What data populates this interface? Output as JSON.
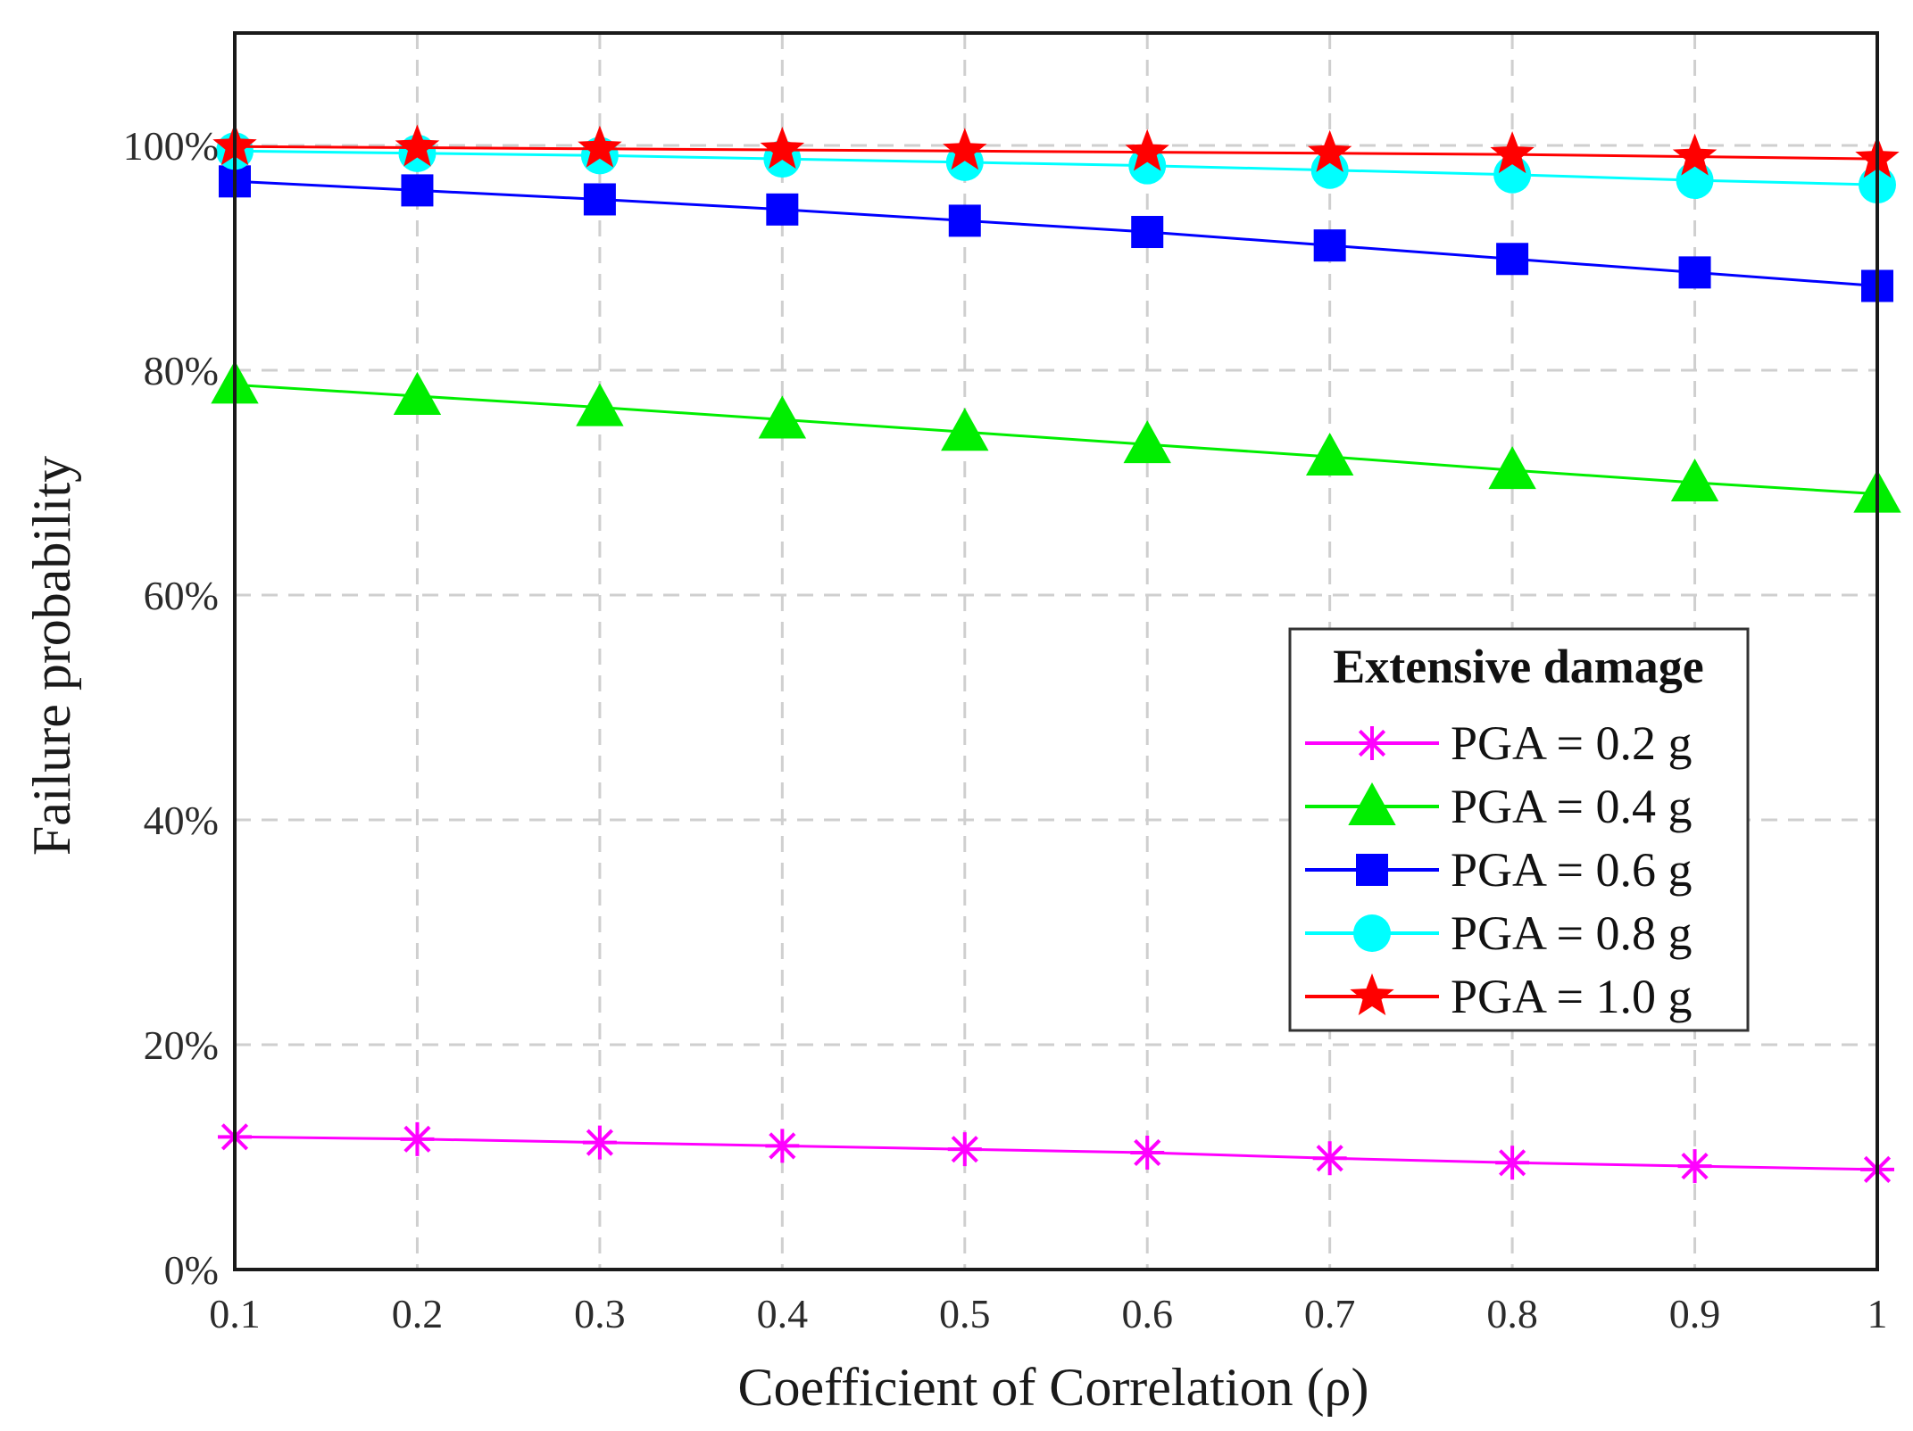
{
  "chart_data": {
    "type": "line",
    "title": "",
    "xlabel": "Coefficient of Correlation (ρ)",
    "ylabel": "Failure probability",
    "x": [
      0.1,
      0.2,
      0.3,
      0.4,
      0.5,
      0.6,
      0.7,
      0.8,
      0.9,
      1.0
    ],
    "xlim": [
      0.1,
      1.0
    ],
    "ylim": [
      0,
      110
    ],
    "x_ticks": [
      0.1,
      0.2,
      0.3,
      0.4,
      0.5,
      0.6,
      0.7,
      0.8,
      0.9,
      1.0
    ],
    "x_tick_labels": [
      "0.1",
      "0.2",
      "0.3",
      "0.4",
      "0.5",
      "0.6",
      "0.7",
      "0.8",
      "0.9",
      "1"
    ],
    "y_ticks": [
      0,
      20,
      40,
      60,
      80,
      100
    ],
    "y_tick_labels": [
      "0%",
      "20%",
      "40%",
      "60%",
      "80%",
      "100%"
    ],
    "grid": true,
    "legend": {
      "title": "Extensive damage",
      "placement": "lower-right"
    },
    "series": [
      {
        "name": "PGA = 0.2 g",
        "color": "#ff00ff",
        "marker": "asterisk",
        "values": [
          11.8,
          11.6,
          11.3,
          11.0,
          10.7,
          10.4,
          9.9,
          9.5,
          9.2,
          8.9
        ]
      },
      {
        "name": "PGA = 0.4 g",
        "color": "#00ee00",
        "marker": "triangle",
        "values": [
          78.7,
          77.7,
          76.7,
          75.6,
          74.5,
          73.4,
          72.3,
          71.1,
          70.0,
          69.0
        ]
      },
      {
        "name": "PGA = 0.6 g",
        "color": "#0000ff",
        "marker": "square",
        "values": [
          96.8,
          96.0,
          95.2,
          94.3,
          93.3,
          92.3,
          91.1,
          89.9,
          88.7,
          87.5
        ]
      },
      {
        "name": "PGA = 0.8 g",
        "color": "#00ffff",
        "marker": "circle",
        "values": [
          99.5,
          99.3,
          99.1,
          98.8,
          98.5,
          98.2,
          97.8,
          97.4,
          96.9,
          96.5
        ]
      },
      {
        "name": "PGA = 1.0 g",
        "color": "#ff0000",
        "marker": "star",
        "values": [
          99.9,
          99.8,
          99.7,
          99.6,
          99.5,
          99.4,
          99.3,
          99.2,
          99.0,
          98.8
        ]
      }
    ]
  }
}
